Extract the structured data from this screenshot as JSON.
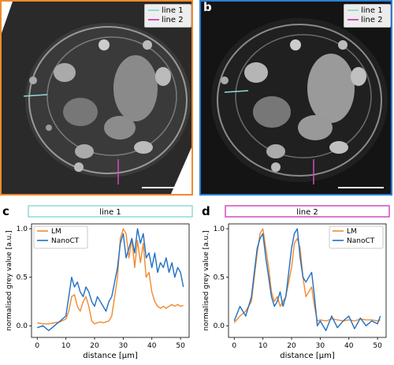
{
  "panels": {
    "a": {
      "letter": "a",
      "border_color": "#f08a30",
      "legend": [
        "line 1",
        "line 2"
      ]
    },
    "b": {
      "letter": "b",
      "border_color": "#2a7fd4",
      "legend": [
        "line 1",
        "line 2"
      ]
    },
    "c": {
      "letter": "c"
    },
    "d": {
      "letter": "d"
    }
  },
  "colors": {
    "line1": "#8fdcd4",
    "line2": "#d44bc0",
    "lm": "#f08a30",
    "nanoct": "#1f6fc4"
  },
  "chart_data": [
    {
      "type": "line",
      "title": "line 1",
      "xlabel": "distance [μm]",
      "ylabel": "normalised grey value [a.u.]",
      "xlim": [
        -2,
        53
      ],
      "ylim": [
        -0.12,
        1.05
      ],
      "xticks": [
        0,
        10,
        20,
        30,
        40,
        50
      ],
      "yticks": [
        0.0,
        0.5,
        1.0
      ],
      "legend_position": "top-left",
      "series": [
        {
          "name": "LM",
          "color": "#f08a30",
          "x": [
            0,
            2,
            4,
            6,
            8,
            10,
            11,
            12,
            13,
            14,
            15,
            16,
            17,
            18,
            19,
            20,
            21,
            22,
            23,
            24,
            25,
            26,
            27,
            28,
            29,
            30,
            31,
            32,
            33,
            34,
            35,
            36,
            37,
            38,
            39,
            40,
            41,
            42,
            43,
            44,
            45,
            46,
            47,
            48,
            49,
            50,
            51
          ],
          "y": [
            0.03,
            0.02,
            0.02,
            0.03,
            0.04,
            0.07,
            0.15,
            0.3,
            0.32,
            0.2,
            0.15,
            0.25,
            0.3,
            0.2,
            0.05,
            0.02,
            0.03,
            0.04,
            0.03,
            0.04,
            0.05,
            0.1,
            0.3,
            0.5,
            0.9,
            1.0,
            0.95,
            0.7,
            0.9,
            0.6,
            0.88,
            0.65,
            0.85,
            0.5,
            0.55,
            0.35,
            0.25,
            0.2,
            0.18,
            0.2,
            0.18,
            0.2,
            0.22,
            0.2,
            0.22,
            0.2,
            0.21
          ]
        },
        {
          "name": "NanoCT",
          "color": "#1f6fc4",
          "x": [
            0,
            2,
            4,
            6,
            8,
            10,
            11,
            12,
            13,
            14,
            15,
            16,
            17,
            18,
            19,
            20,
            21,
            22,
            23,
            24,
            25,
            26,
            27,
            28,
            29,
            30,
            31,
            32,
            33,
            34,
            35,
            36,
            37,
            38,
            39,
            40,
            41,
            42,
            43,
            44,
            45,
            46,
            47,
            48,
            49,
            50,
            51
          ],
          "y": [
            -0.02,
            0.0,
            -0.05,
            0.0,
            0.05,
            0.1,
            0.3,
            0.5,
            0.4,
            0.45,
            0.35,
            0.3,
            0.4,
            0.35,
            0.25,
            0.2,
            0.3,
            0.25,
            0.2,
            0.15,
            0.25,
            0.3,
            0.45,
            0.6,
            0.85,
            0.95,
            0.7,
            0.8,
            0.9,
            0.75,
            1.0,
            0.85,
            0.95,
            0.7,
            0.75,
            0.6,
            0.75,
            0.55,
            0.65,
            0.6,
            0.7,
            0.55,
            0.65,
            0.5,
            0.6,
            0.55,
            0.4
          ]
        }
      ]
    },
    {
      "type": "line",
      "title": "line 2",
      "xlabel": "distance [μm]",
      "ylabel": "normalised grey value [a.u.]",
      "xlim": [
        -2,
        53
      ],
      "ylim": [
        -0.12,
        1.05
      ],
      "xticks": [
        0,
        10,
        20,
        30,
        40,
        50
      ],
      "yticks": [
        0.0,
        0.5,
        1.0
      ],
      "legend_position": "top-right",
      "series": [
        {
          "name": "LM",
          "color": "#f08a30",
          "x": [
            0,
            2,
            4,
            6,
            7,
            8,
            9,
            10,
            11,
            12,
            13,
            14,
            15,
            16,
            17,
            18,
            19,
            20,
            21,
            22,
            23,
            24,
            25,
            26,
            27,
            28,
            29,
            30,
            32,
            34,
            36,
            38,
            40,
            42,
            44,
            46,
            48,
            50,
            51
          ],
          "y": [
            0.03,
            0.1,
            0.15,
            0.25,
            0.5,
            0.75,
            0.95,
            1.0,
            0.8,
            0.6,
            0.35,
            0.25,
            0.3,
            0.2,
            0.25,
            0.3,
            0.45,
            0.6,
            0.85,
            0.9,
            0.8,
            0.5,
            0.3,
            0.35,
            0.4,
            0.2,
            0.05,
            0.06,
            0.05,
            0.07,
            0.06,
            0.05,
            0.06,
            0.05,
            0.07,
            0.06,
            0.06,
            0.05,
            0.06
          ]
        },
        {
          "name": "NanoCT",
          "color": "#1f6fc4",
          "x": [
            0,
            2,
            4,
            6,
            7,
            8,
            9,
            10,
            11,
            12,
            13,
            14,
            15,
            16,
            17,
            18,
            19,
            20,
            21,
            22,
            23,
            24,
            25,
            26,
            27,
            28,
            29,
            30,
            32,
            34,
            36,
            38,
            40,
            42,
            44,
            46,
            48,
            50,
            51
          ],
          "y": [
            0.05,
            0.2,
            0.1,
            0.3,
            0.55,
            0.8,
            0.9,
            0.95,
            0.7,
            0.5,
            0.3,
            0.2,
            0.25,
            0.35,
            0.2,
            0.3,
            0.55,
            0.8,
            0.95,
            1.0,
            0.7,
            0.5,
            0.45,
            0.5,
            0.55,
            0.3,
            0.0,
            0.05,
            -0.05,
            0.1,
            -0.02,
            0.05,
            0.1,
            -0.03,
            0.08,
            0.0,
            0.05,
            0.02,
            0.1
          ]
        }
      ]
    }
  ]
}
